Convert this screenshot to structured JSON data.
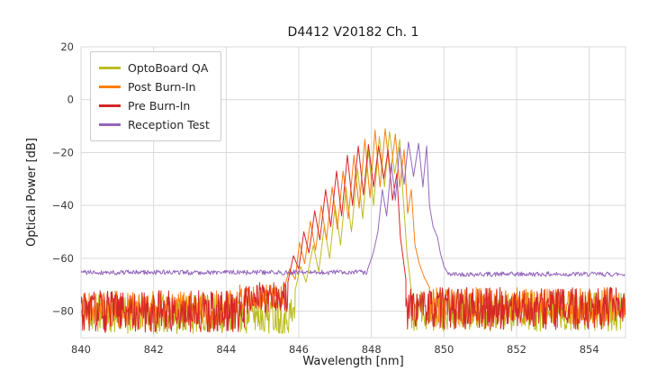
{
  "figure_title": "D4412 V20182 Ch. 1",
  "chart_data": {
    "type": "line",
    "title": "D4412 V20182 Ch. 1",
    "xlabel": "Wavelength [nm]",
    "ylabel": "Optical Power [dB]",
    "xlim": [
      840,
      855
    ],
    "ylim": [
      -90,
      20
    ],
    "xticks": [
      840,
      842,
      844,
      846,
      848,
      850,
      852,
      854
    ],
    "yticks": [
      20,
      0,
      -20,
      -40,
      -60,
      -80
    ],
    "grid": true,
    "grid_color": "#d9d9d9",
    "legend_position": "upper-left",
    "series": [
      {
        "name": "OptoBoard QA",
        "color": "#bcbd22",
        "segments": [
          {
            "noise": {
              "x0": 840.0,
              "x1": 845.9,
              "floor": -81,
              "amp": 7.5,
              "seed": 11,
              "step": 0.015
            }
          },
          {
            "points": [
              [
                845.9,
                -72
              ],
              [
                846.05,
                -63
              ],
              [
                846.2,
                -69
              ],
              [
                846.4,
                -55
              ],
              [
                846.55,
                -65
              ],
              [
                846.7,
                -48
              ],
              [
                846.85,
                -60
              ],
              [
                847.0,
                -40
              ],
              [
                847.15,
                -55
              ],
              [
                847.3,
                -33
              ],
              [
                847.45,
                -50
              ],
              [
                847.62,
                -26
              ],
              [
                847.76,
                -45
              ],
              [
                847.92,
                -19
              ],
              [
                848.06,
                -40
              ],
              [
                848.22,
                -14
              ],
              [
                848.36,
                -33
              ],
              [
                848.5,
                -12
              ],
              [
                848.64,
                -28
              ],
              [
                848.78,
                -15
              ],
              [
                848.88,
                -38
              ],
              [
                848.98,
                -58
              ],
              [
                849.1,
                -72
              ]
            ]
          },
          {
            "noise": {
              "x0": 849.1,
              "x1": 855.0,
              "floor": -80,
              "amp": 7.5,
              "seed": 12,
              "step": 0.015
            }
          }
        ]
      },
      {
        "name": "Post Burn-In",
        "color": "#ff7f0e",
        "segments": [
          {
            "noise": {
              "x0": 840.0,
              "x1": 844.3,
              "floor": -79,
              "amp": 7.0,
              "seed": 21,
              "step": 0.015
            }
          },
          {
            "noise": {
              "x0": 844.3,
              "x1": 845.6,
              "floor": -74,
              "amp": 5.0,
              "seed": 22,
              "step": 0.015
            }
          },
          {
            "points": [
              [
                845.6,
                -71
              ],
              [
                845.75,
                -64
              ],
              [
                845.9,
                -68
              ],
              [
                846.02,
                -54
              ],
              [
                846.16,
                -62
              ],
              [
                846.32,
                -46
              ],
              [
                846.46,
                -57
              ],
              [
                846.62,
                -40
              ],
              [
                846.76,
                -53
              ],
              [
                846.92,
                -33
              ],
              [
                847.06,
                -49
              ],
              [
                847.22,
                -27
              ],
              [
                847.36,
                -45
              ],
              [
                847.52,
                -21
              ],
              [
                847.66,
                -41
              ],
              [
                847.82,
                -15
              ],
              [
                847.96,
                -37
              ],
              [
                848.1,
                -11.5
              ],
              [
                848.24,
                -33
              ],
              [
                848.38,
                -11
              ],
              [
                848.52,
                -29
              ],
              [
                848.66,
                -13
              ],
              [
                848.78,
                -33
              ],
              [
                848.9,
                -19
              ],
              [
                849.0,
                -43
              ],
              [
                849.1,
                -34
              ],
              [
                849.2,
                -55
              ],
              [
                849.32,
                -62
              ],
              [
                849.45,
                -67
              ],
              [
                849.6,
                -71
              ]
            ]
          },
          {
            "noise": {
              "x0": 849.6,
              "x1": 855.0,
              "floor": -78,
              "amp": 7.0,
              "seed": 23,
              "step": 0.015
            }
          }
        ]
      },
      {
        "name": "Pre Burn-In",
        "color": "#d62728",
        "segments": [
          {
            "noise": {
              "x0": 840.0,
              "x1": 844.5,
              "floor": -80,
              "amp": 8.0,
              "seed": 31,
              "step": 0.015
            }
          },
          {
            "noise": {
              "x0": 844.5,
              "x1": 845.7,
              "floor": -75,
              "amp": 6.0,
              "seed": 32,
              "step": 0.015
            }
          },
          {
            "points": [
              [
                845.7,
                -69
              ],
              [
                845.85,
                -59
              ],
              [
                846.0,
                -64
              ],
              [
                846.14,
                -50
              ],
              [
                846.28,
                -58
              ],
              [
                846.44,
                -42
              ],
              [
                846.58,
                -53
              ],
              [
                846.74,
                -34
              ],
              [
                846.88,
                -48
              ],
              [
                847.04,
                -27
              ],
              [
                847.18,
                -44
              ],
              [
                847.34,
                -21
              ],
              [
                847.48,
                -40
              ],
              [
                847.64,
                -17.5
              ],
              [
                847.78,
                -36
              ],
              [
                847.92,
                -17
              ],
              [
                848.06,
                -33
              ],
              [
                848.2,
                -17.5
              ],
              [
                848.34,
                -30
              ],
              [
                848.46,
                -19
              ],
              [
                848.58,
                -38
              ],
              [
                848.7,
                -28
              ],
              [
                848.8,
                -52
              ],
              [
                848.95,
                -68
              ]
            ]
          },
          {
            "noise": {
              "x0": 848.95,
              "x1": 855.0,
              "floor": -79,
              "amp": 8.0,
              "seed": 33,
              "step": 0.015
            }
          }
        ]
      },
      {
        "name": "Reception Test",
        "color": "#9467bd",
        "segments": [
          {
            "noise": {
              "x0": 840.0,
              "x1": 847.9,
              "floor": -65.3,
              "amp": 0.9,
              "seed": 41,
              "step": 0.02
            }
          },
          {
            "points": [
              [
                847.9,
                -64
              ],
              [
                848.05,
                -58
              ],
              [
                848.18,
                -50
              ],
              [
                848.3,
                -34
              ],
              [
                848.42,
                -44
              ],
              [
                848.55,
                -24
              ],
              [
                848.66,
                -38
              ],
              [
                848.78,
                -18
              ],
              [
                848.9,
                -32
              ],
              [
                849.02,
                -16
              ],
              [
                849.16,
                -29
              ],
              [
                849.3,
                -16.5
              ],
              [
                849.42,
                -33
              ],
              [
                849.52,
                -17.5
              ],
              [
                849.6,
                -40
              ],
              [
                849.7,
                -48
              ],
              [
                849.82,
                -52
              ],
              [
                849.9,
                -58
              ],
              [
                850.0,
                -63
              ],
              [
                850.1,
                -65.5
              ]
            ]
          },
          {
            "noise": {
              "x0": 850.1,
              "x1": 855.0,
              "floor": -66,
              "amp": 0.9,
              "seed": 42,
              "step": 0.02
            }
          }
        ]
      }
    ]
  }
}
